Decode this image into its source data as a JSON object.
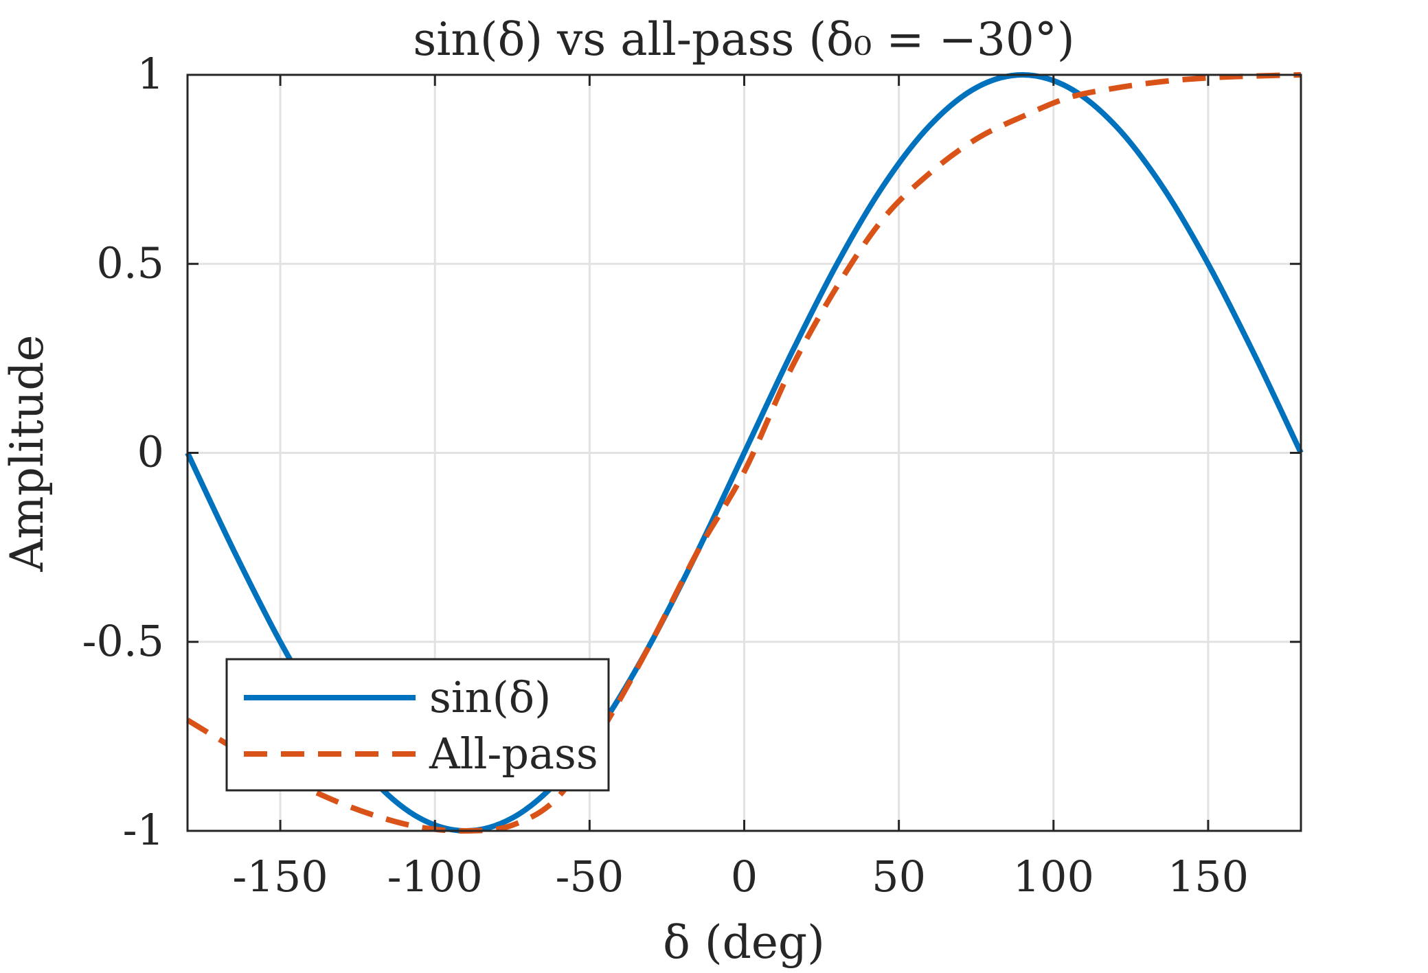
{
  "chart_data": {
    "type": "line",
    "title": "sin(δ) vs all-pass (δ₀ = −30°)",
    "xlabel": "δ (deg)",
    "ylabel": "Amplitude",
    "xlim": [
      -180,
      180
    ],
    "ylim": [
      -1,
      1
    ],
    "grid": true,
    "legend_position": "bottom-left",
    "xticks": [
      -150,
      -100,
      -50,
      0,
      50,
      100,
      150
    ],
    "xtick_labels": [
      "-150",
      "-100",
      "-50",
      "0",
      "50",
      "100",
      "150"
    ],
    "yticks": [
      -1,
      -0.5,
      0,
      0.5,
      1
    ],
    "ytick_labels": [
      "-1",
      "-0.5",
      "0",
      "0.5",
      "1"
    ],
    "x": [
      -180,
      -165,
      -150,
      -135,
      -120,
      -105,
      -90,
      -75,
      -60,
      -45,
      -30,
      -15,
      0,
      15,
      30,
      45,
      60,
      75,
      90,
      105,
      120,
      135,
      150,
      165,
      180
    ],
    "series": [
      {
        "name": "sin(δ)",
        "color": "#0072BD",
        "style": "solid",
        "values": [
          0,
          -0.259,
          -0.5,
          -0.707,
          -0.866,
          -0.966,
          -1,
          -0.966,
          -0.866,
          -0.707,
          -0.5,
          -0.259,
          0,
          0.259,
          0.5,
          0.707,
          0.866,
          0.966,
          1,
          0.966,
          0.866,
          0.707,
          0.5,
          0.259,
          0
        ]
      },
      {
        "name": "All-pass",
        "color": "#D95319",
        "style": "dashed",
        "values": [
          -0.707,
          -0.781,
          -0.85,
          -0.911,
          -0.958,
          -0.99,
          -1,
          -0.985,
          -0.909,
          -0.72,
          -0.5,
          -0.26,
          -0.05,
          0.22,
          0.44,
          0.62,
          0.74,
          0.83,
          0.89,
          0.94,
          0.965,
          0.982,
          0.992,
          0.997,
          1.0
        ]
      }
    ]
  }
}
